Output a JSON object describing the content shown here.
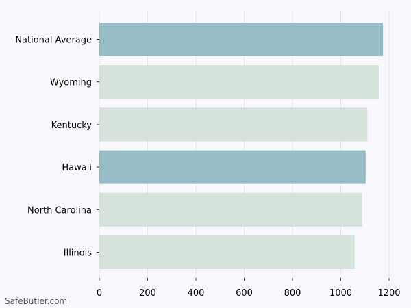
{
  "footer": {
    "source": "SafeButler.com"
  },
  "colors": {
    "background": "#f9f9fd",
    "highlight": "#96bcc5",
    "default": "#d4e2d9",
    "grid": "#e6e6ec",
    "text": "#000000"
  },
  "chart_data": {
    "type": "bar",
    "orientation": "horizontal",
    "title": "",
    "xlabel": "",
    "ylabel": "",
    "xlim": [
      0,
      1250
    ],
    "x_ticks": [
      0,
      200,
      400,
      600,
      800,
      1000,
      1200
    ],
    "grid": "vertical",
    "categories": [
      "National Average",
      "Wyoming",
      "Kentucky",
      "Hawaii",
      "North Carolina",
      "Illinois"
    ],
    "values": [
      1175,
      1158,
      1110,
      1103,
      1088,
      1057
    ],
    "highlighted": [
      true,
      false,
      false,
      true,
      false,
      false
    ]
  }
}
